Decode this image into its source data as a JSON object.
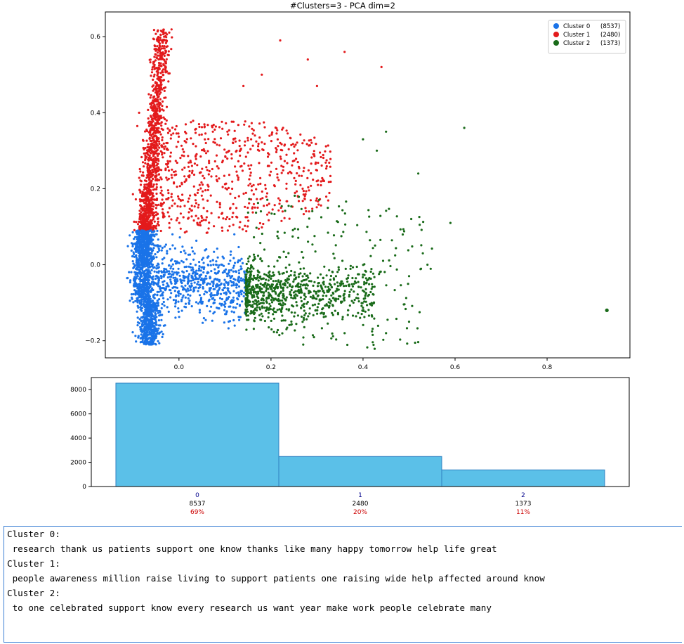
{
  "scatter": {
    "title": "#Clusters=3 - PCA dim=2",
    "xlim": [
      -0.16,
      0.98
    ],
    "ylim": [
      -0.245,
      0.665
    ],
    "xticks": [
      0.0,
      0.2,
      0.4,
      0.6,
      0.8
    ],
    "yticks": [
      -0.2,
      0.0,
      0.2,
      0.4,
      0.6
    ],
    "legend_position": "top-right",
    "legend": [
      {
        "label": "Cluster 0",
        "count": "(8537)"
      },
      {
        "label": "Cluster 1",
        "count": "(2480)"
      },
      {
        "label": "Cluster 2",
        "count": "(1373)"
      }
    ],
    "colors": [
      "#1a73e8",
      "#e31a1c",
      "#1a6b1a"
    ]
  },
  "chart_data": [
    {
      "type": "scatter",
      "title": "#Clusters=3 - PCA dim=2",
      "xlabel": "",
      "ylabel": "",
      "xlim": [
        -0.16,
        0.98
      ],
      "ylim": [
        -0.245,
        0.665
      ],
      "grid": false,
      "legend": "top-right",
      "series": [
        {
          "name": "Cluster 0 (8537)",
          "color": "#1a73e8",
          "centroid": [
            -0.02,
            -0.04
          ],
          "points": [
            [
              -0.09,
              -0.21
            ],
            [
              -0.08,
              -0.15
            ],
            [
              -0.07,
              0.05
            ],
            [
              -0.06,
              0.08
            ],
            [
              0.0,
              0.02
            ],
            [
              0.05,
              -0.02
            ],
            [
              0.1,
              0.0
            ],
            [
              0.15,
              0.04
            ],
            [
              0.13,
              -0.1
            ],
            [
              0.0,
              -0.12
            ]
          ]
        },
        {
          "name": "Cluster 1 (2480)",
          "color": "#e31a1c",
          "centroid": [
            0.02,
            0.22
          ],
          "points": [
            [
              -0.05,
              0.62
            ],
            [
              -0.07,
              0.45
            ],
            [
              -0.06,
              0.3
            ],
            [
              -0.08,
              0.15
            ],
            [
              0.05,
              0.35
            ],
            [
              0.1,
              0.25
            ],
            [
              0.2,
              0.3
            ],
            [
              0.22,
              0.59
            ],
            [
              0.36,
              0.56
            ],
            [
              0.44,
              0.52
            ],
            [
              0.15,
              0.1
            ]
          ]
        },
        {
          "name": "Cluster 2 (1373)",
          "color": "#1a6b1a",
          "centroid": [
            0.28,
            -0.06
          ],
          "points": [
            [
              0.15,
              -0.08
            ],
            [
              0.2,
              0.1
            ],
            [
              0.3,
              -0.1
            ],
            [
              0.4,
              -0.1
            ],
            [
              0.45,
              0.35
            ],
            [
              0.52,
              0.24
            ],
            [
              0.59,
              0.11
            ],
            [
              0.62,
              0.36
            ],
            [
              0.93,
              -0.12
            ],
            [
              0.27,
              -0.21
            ],
            [
              0.5,
              -0.15
            ]
          ]
        }
      ]
    },
    {
      "type": "bar",
      "title": "",
      "xlabel": "",
      "ylabel": "",
      "categories": [
        "0",
        "1",
        "2"
      ],
      "values": [
        8537,
        2480,
        1373
      ],
      "percent_labels": [
        "69%",
        "20%",
        "11%"
      ],
      "ylim": [
        0,
        9000
      ],
      "yticks": [
        0,
        2000,
        4000,
        6000,
        8000
      ],
      "bar_color": "#5bc0e8",
      "edge_color": "#2f7fc1",
      "tick_label_color": "#00008b",
      "percent_color": "#cc0000"
    }
  ],
  "output": {
    "lines": [
      "Cluster 0:",
      " research thank us patients support one know thanks like many happy tomorrow help life great",
      "Cluster 1:",
      " people awareness million raise living to support patients one raising wide help affected around know",
      "Cluster 2:",
      " to one celebrated support know every research us want year make work people celebrate many"
    ]
  }
}
